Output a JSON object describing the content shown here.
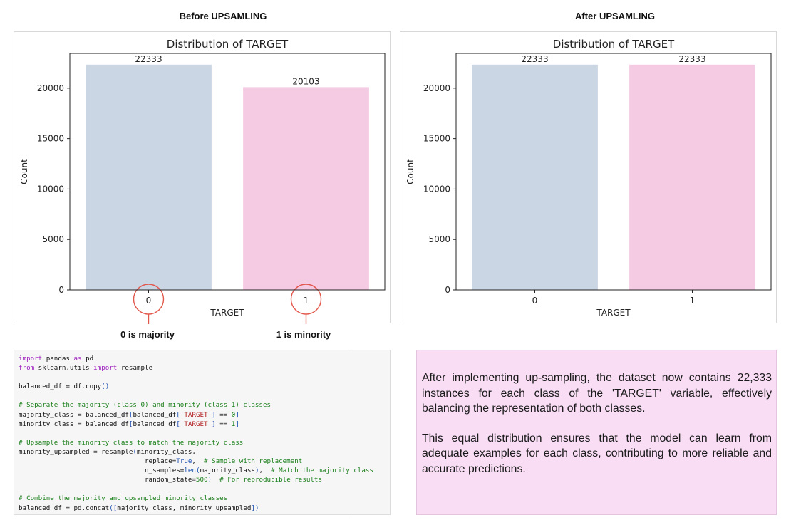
{
  "headings": {
    "before": "Before UPSAMLING",
    "after": "After UPSAMLING"
  },
  "annotations": {
    "majority": "0 is majority",
    "minority": "1 is minority"
  },
  "chart_data": [
    {
      "type": "bar",
      "title": "Distribution of TARGET",
      "xlabel": "TARGET",
      "ylabel": "Count",
      "categories": [
        "0",
        "1"
      ],
      "values": [
        22333,
        20103
      ],
      "data_labels": [
        "22333",
        "20103"
      ],
      "yticks": [
        0,
        5000,
        10000,
        15000,
        20000
      ],
      "ylim": [
        0,
        23449.65
      ],
      "colors": [
        "#cbd6e4",
        "#f5cbe4"
      ],
      "grid": false,
      "highlight_circles": true
    },
    {
      "type": "bar",
      "title": "Distribution of TARGET",
      "xlabel": "TARGET",
      "ylabel": "Count",
      "categories": [
        "0",
        "1"
      ],
      "values": [
        22333,
        22333
      ],
      "data_labels": [
        "22333",
        "22333"
      ],
      "yticks": [
        0,
        5000,
        10000,
        15000,
        20000
      ],
      "ylim": [
        0,
        23449.65
      ],
      "colors": [
        "#cbd6e4",
        "#f5cbe4"
      ],
      "grid": false,
      "highlight_circles": false
    }
  ],
  "annotation_color": "#e2574c",
  "code": {
    "lines": [
      [
        [
          "kw",
          "import"
        ],
        [
          "t",
          " pandas "
        ],
        [
          "kw",
          "as"
        ],
        [
          "t",
          " pd"
        ]
      ],
      [
        [
          "kw",
          "from"
        ],
        [
          "t",
          " sklearn.utils "
        ],
        [
          "kw",
          "import"
        ],
        [
          "t",
          " resample"
        ]
      ],
      [],
      [
        [
          "t",
          "balanced_df = df.copy"
        ],
        [
          "par",
          "()"
        ]
      ],
      [],
      [
        [
          "cm",
          "# Separate the majority (class 0) and minority (class 1) classes"
        ]
      ],
      [
        [
          "t",
          "majority_class = balanced_df"
        ],
        [
          "par",
          "["
        ],
        [
          "t",
          "balanced_df"
        ],
        [
          "par",
          "["
        ],
        [
          "str",
          "'TARGET'"
        ],
        [
          "par",
          "]"
        ],
        [
          "t",
          " == "
        ],
        [
          "num",
          "0"
        ],
        [
          "par",
          "]"
        ]
      ],
      [
        [
          "t",
          "minority_class = balanced_df"
        ],
        [
          "par",
          "["
        ],
        [
          "t",
          "balanced_df"
        ],
        [
          "par",
          "["
        ],
        [
          "str",
          "'TARGET'"
        ],
        [
          "par",
          "]"
        ],
        [
          "t",
          " == "
        ],
        [
          "num",
          "1"
        ],
        [
          "par",
          "]"
        ]
      ],
      [],
      [
        [
          "cm",
          "# Upsample the minority class to match the majority class"
        ]
      ],
      [
        [
          "t",
          "minority_upsampled = resample"
        ],
        [
          "par",
          "("
        ],
        [
          "t",
          "minority_class,"
        ]
      ],
      [
        [
          "t",
          "                                replace="
        ],
        [
          "kc",
          "True"
        ],
        [
          "t",
          ",  "
        ],
        [
          "cm",
          "# Sample with replacement"
        ]
      ],
      [
        [
          "t",
          "                                n_samples="
        ],
        [
          "bi",
          "len"
        ],
        [
          "par",
          "("
        ],
        [
          "t",
          "majority_class"
        ],
        [
          "par",
          ")"
        ],
        [
          "t",
          ",  "
        ],
        [
          "cm",
          "# Match the majority class"
        ]
      ],
      [
        [
          "t",
          "                                random_state="
        ],
        [
          "num",
          "500"
        ],
        [
          "par",
          ")"
        ],
        [
          "t",
          "  "
        ],
        [
          "cm",
          "# For reproducible results"
        ]
      ],
      [],
      [
        [
          "cm",
          "# Combine the majority and upsampled minority classes"
        ]
      ],
      [
        [
          "t",
          "balanced_df = pd.concat"
        ],
        [
          "par",
          "(["
        ],
        [
          "t",
          "majority_class, minority_upsampled"
        ],
        [
          "par",
          "])"
        ]
      ]
    ]
  },
  "notes": {
    "paragraph1": "After implementing up-sampling, the dataset now contains 22,333 instances for each class of the 'TARGET' variable, effectively balancing the representation of both classes.",
    "paragraph2": "This equal distribution ensures that the model can learn from adequate examples for each class, contributing to more reliable and accurate predictions."
  }
}
